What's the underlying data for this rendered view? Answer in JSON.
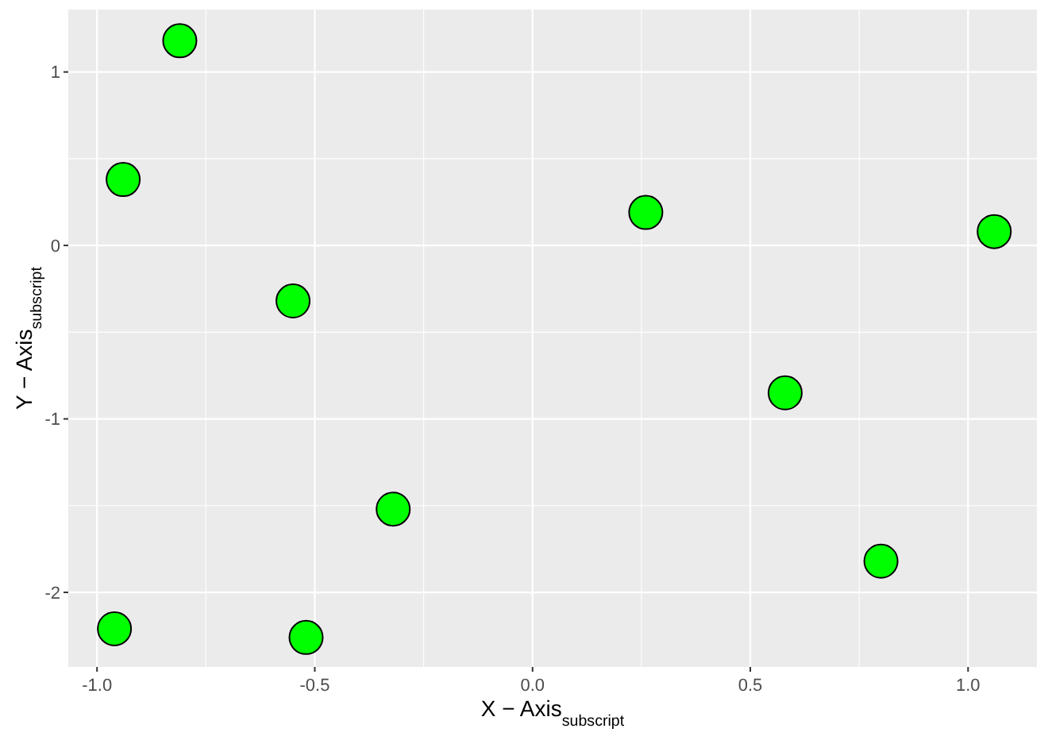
{
  "chart_data": {
    "type": "scatter",
    "xlabel": "X − Axis$_{subscript}$",
    "ylabel": "Y − Axis$_{subscript}$",
    "x": [
      -0.81,
      -0.94,
      -0.55,
      -0.32,
      -0.96,
      -0.52,
      0.26,
      1.06,
      0.58,
      0.8
    ],
    "series": [
      {
        "color": "#00ff00",
        "values": [
          1.18,
          0.38,
          -0.32,
          -1.52,
          -2.21,
          -2.26,
          0.19,
          0.08,
          -0.85,
          -1.82
        ]
      }
    ],
    "xlim": [
      -1.066,
      1.158
    ],
    "ylim": [
      -2.43,
      1.36
    ],
    "xticks": [
      {
        "value": -1,
        "label": "-1.0"
      },
      {
        "value": -0.5,
        "label": "-0.5"
      },
      {
        "value": 0,
        "label": "0.0"
      },
      {
        "value": 0.5,
        "label": "0.5"
      },
      {
        "value": 1,
        "label": "1.0"
      }
    ],
    "yticks": [
      -2,
      -1,
      0,
      1
    ],
    "grid": true,
    "marker": "circle"
  }
}
